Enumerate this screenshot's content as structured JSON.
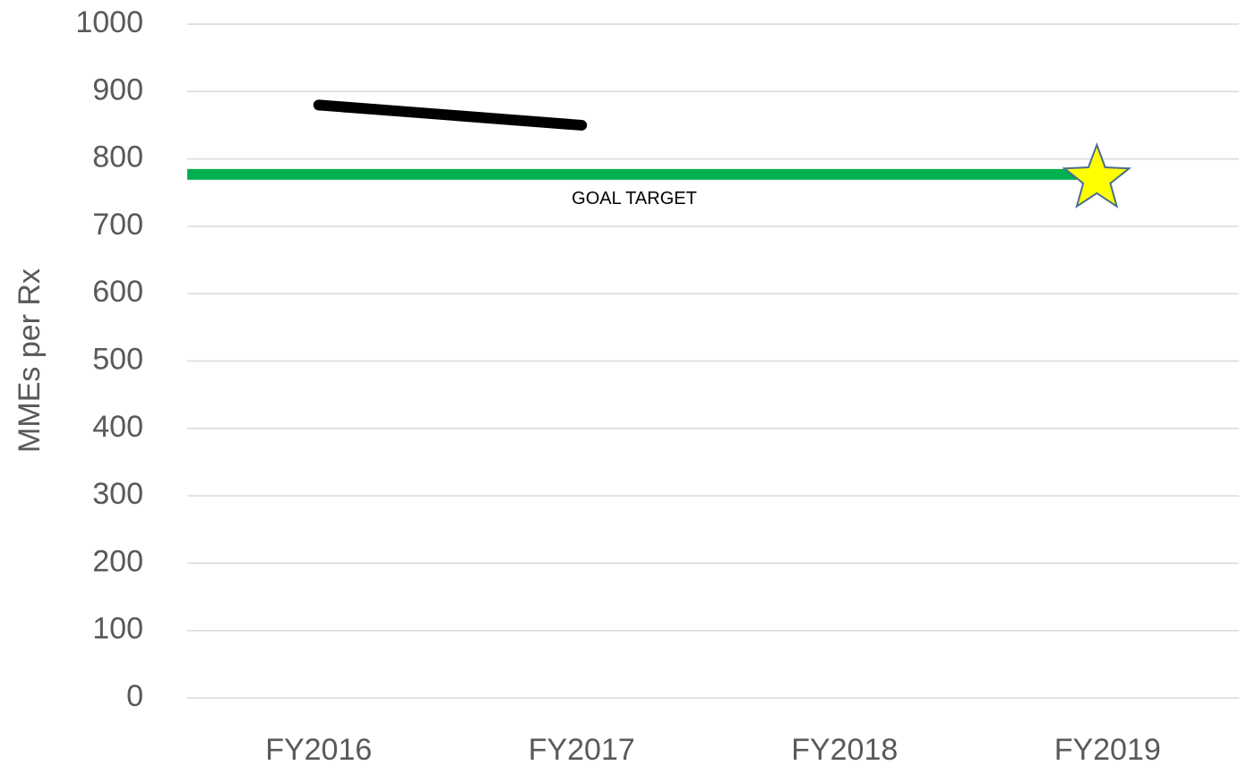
{
  "chart_data": {
    "type": "line",
    "y_label": "MMEs per Rx",
    "categories": [
      "FY2016",
      "FY2017",
      "FY2018",
      "FY2019"
    ],
    "series": [
      {
        "color": "#000000",
        "values": [
          880,
          850,
          null,
          null
        ]
      },
      {
        "color": "#ffff00",
        "marker": "star",
        "values": [
          null,
          null,
          null,
          777
        ]
      }
    ],
    "goal_line": {
      "value": 777,
      "label": "GOAL TARGET",
      "color": "#00b050"
    },
    "ylim": [
      0,
      1000
    ],
    "yticks": [
      0,
      100,
      200,
      300,
      400,
      500,
      600,
      700,
      800,
      900,
      1000
    ],
    "grid": true
  }
}
